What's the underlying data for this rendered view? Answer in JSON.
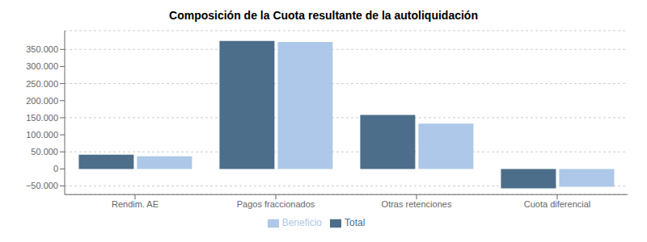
{
  "chart_data": {
    "type": "bar",
    "title": "Composición de la Cuota resultante de la autoliquidación",
    "categories": [
      "Rendim. AE",
      "Pagos fraccionados",
      "Otras retenciones",
      "Cuota diferencial"
    ],
    "series": [
      {
        "name": "Total",
        "color": "#4d6e8a",
        "values": [
          42000,
          375000,
          158000,
          -57000
        ]
      },
      {
        "name": "Beneficio",
        "color": "#adc8e8",
        "values": [
          37000,
          372000,
          133000,
          -52000
        ]
      }
    ],
    "ylim": [
      -75000,
      405000
    ],
    "yticks": [
      {
        "value": -50000,
        "label": "−50.000"
      },
      0,
      {
        "value": 50000,
        "label": "50.000"
      },
      {
        "value": 100000,
        "label": "100.000"
      },
      {
        "value": 150000,
        "label": "150.000"
      },
      {
        "value": 200000,
        "label": "200.000"
      },
      {
        "value": 250000,
        "label": "250.000"
      },
      {
        "value": 300000,
        "label": "300.000"
      },
      {
        "value": 350000,
        "label": "350.000"
      }
    ],
    "grid": true,
    "legend": "bottom"
  }
}
